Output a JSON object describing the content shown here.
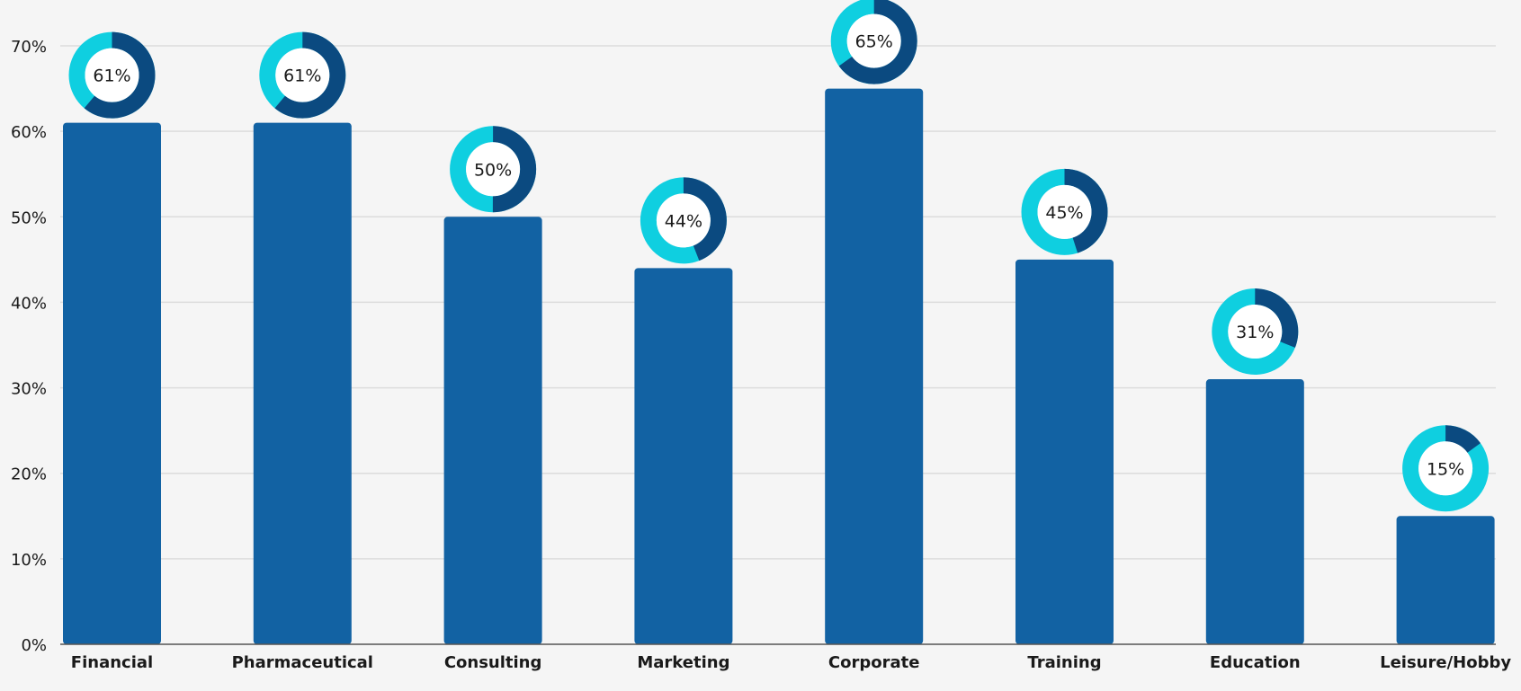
{
  "chart_data": {
    "type": "bar",
    "title": "",
    "xlabel": "",
    "ylabel": "",
    "categories": [
      "Financial",
      "Pharmaceutical",
      "Consulting",
      "Marketing",
      "Corporate",
      "Training",
      "Education",
      "Leisure/Hobby"
    ],
    "values": [
      61,
      61,
      50,
      44,
      65,
      45,
      31,
      15
    ],
    "data_labels": [
      "61%",
      "61%",
      "50%",
      "44%",
      "65%",
      "45%",
      "31%",
      "15%"
    ],
    "ylim": [
      0,
      70
    ],
    "yticks": [
      0,
      10,
      20,
      30,
      40,
      50,
      60,
      70
    ],
    "ytick_labels": [
      "0%",
      "10%",
      "20%",
      "30%",
      "40%",
      "50%",
      "60%",
      "70%"
    ],
    "grid": true,
    "legend": "none",
    "data_label_style": "donut ring above each bar showing the value as a fraction of 100%",
    "colors": {
      "bar": "#1262a3",
      "donut_value": "#0b4a80",
      "donut_rest": "#0fcfe0",
      "grid": "#dcdcdc",
      "axis": "#555555",
      "text": "#1a1a1a",
      "background": "#f5f5f5"
    }
  }
}
